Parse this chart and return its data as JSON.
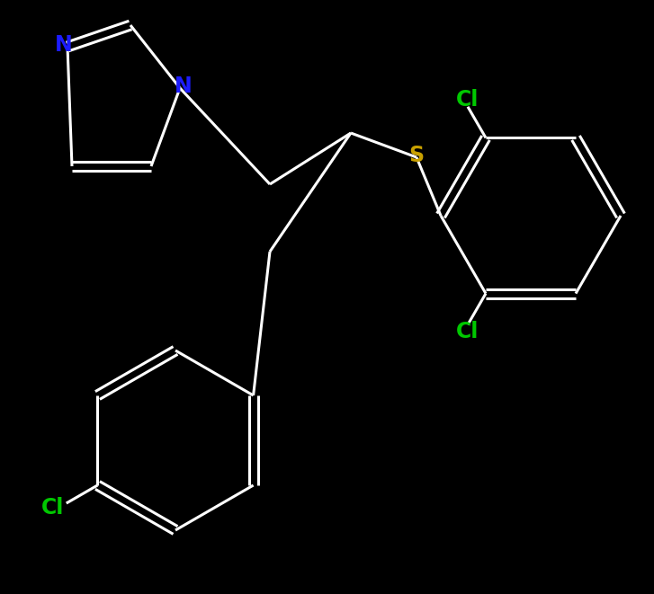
{
  "background_color": "#000000",
  "bond_color": "#ffffff",
  "N_color": "#1c1cff",
  "S_color": "#c8a000",
  "Cl_color": "#00c800",
  "bond_width": 2.2,
  "font_size": 17,
  "figsize": [
    7.27,
    6.61
  ],
  "dpi": 100,
  "xlim": [
    0,
    727
  ],
  "ylim": [
    0,
    661
  ]
}
